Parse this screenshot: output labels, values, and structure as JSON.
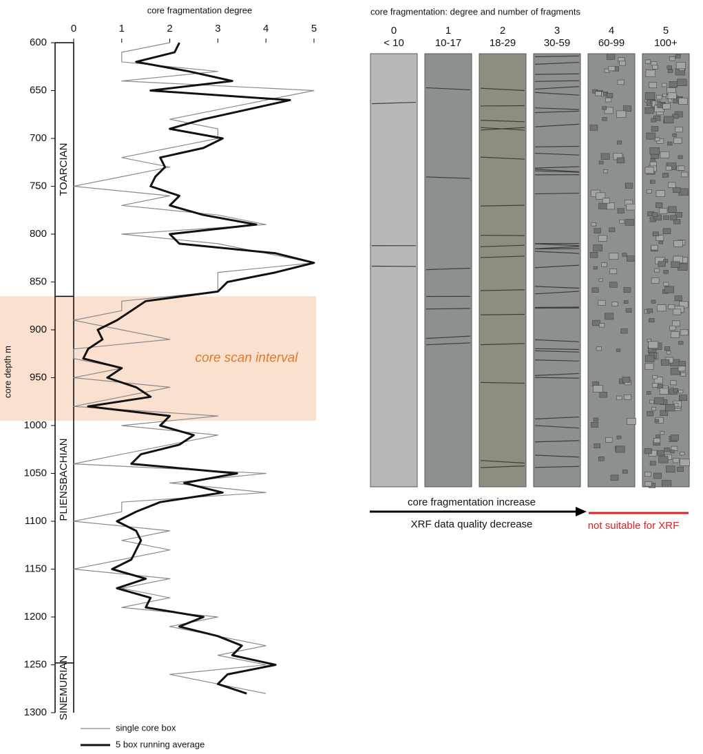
{
  "chart_data": {
    "type": "line",
    "x_label": "core fragmentation degree",
    "y_label": "core depth m",
    "xlim": [
      0,
      5
    ],
    "xticks": [
      0,
      1,
      2,
      3,
      4,
      5
    ],
    "ylim": [
      600,
      1300
    ],
    "yticks": [
      600,
      650,
      700,
      750,
      800,
      850,
      900,
      950,
      1000,
      1050,
      1100,
      1150,
      1200,
      1250,
      1300
    ],
    "y_inverted": true,
    "x_axis_position": "top",
    "depths": [
      600,
      610,
      620,
      630,
      640,
      650,
      660,
      670,
      680,
      690,
      700,
      710,
      720,
      730,
      740,
      750,
      760,
      770,
      780,
      790,
      800,
      810,
      820,
      830,
      840,
      850,
      860,
      870,
      880,
      890,
      900,
      910,
      920,
      930,
      940,
      950,
      960,
      970,
      980,
      990,
      1000,
      1010,
      1020,
      1030,
      1040,
      1050,
      1060,
      1070,
      1080,
      1090,
      1100,
      1110,
      1120,
      1130,
      1140,
      1150,
      1160,
      1170,
      1180,
      1190,
      1200,
      1210,
      1220,
      1230,
      1240,
      1250,
      1260,
      1270,
      1280
    ],
    "series": [
      {
        "name": "single core box",
        "color": "#8a8a8a",
        "width": 1.2,
        "values": [
          2,
          1,
          1,
          3,
          1,
          5,
          4,
          3,
          2,
          3,
          3,
          2,
          1,
          2,
          1,
          0,
          2,
          1,
          3,
          4,
          1,
          3,
          4,
          5,
          3,
          3,
          3,
          1,
          1,
          0,
          1,
          2,
          0,
          0,
          1,
          0,
          2,
          1,
          0,
          3,
          1,
          3,
          2,
          1,
          0,
          4,
          2,
          4,
          1,
          1,
          0,
          2,
          1,
          2,
          1,
          0,
          2,
          1,
          2,
          1,
          3,
          2,
          3,
          4,
          3,
          4,
          2,
          3,
          4
        ]
      },
      {
        "name": "5 box running average",
        "color": "#111111",
        "width": 3,
        "values": [
          2.2,
          2.1,
          1.3,
          2.4,
          3.3,
          1.6,
          4.5,
          3.6,
          2.7,
          2.0,
          3.1,
          2.7,
          1.8,
          1.9,
          1.7,
          1.6,
          2.2,
          2.0,
          2.7,
          3.8,
          2.0,
          2.2,
          4.2,
          5.0,
          4.2,
          3.2,
          3.0,
          1.5,
          1.2,
          0.9,
          0.5,
          0.6,
          0.3,
          0.2,
          1.0,
          0.7,
          1.3,
          1.6,
          0.3,
          2.0,
          1.8,
          2.5,
          2.2,
          1.4,
          1.2,
          3.4,
          2.3,
          3.1,
          1.8,
          1.3,
          0.9,
          1.3,
          1.4,
          1.3,
          1.2,
          0.8,
          1.5,
          0.9,
          1.6,
          1.5,
          2.7,
          2.2,
          3.0,
          3.5,
          3.3,
          4.2,
          3.2,
          3.0,
          3.6
        ]
      }
    ],
    "stages": [
      {
        "name": "TOARCIAN",
        "top": 600,
        "base": 865
      },
      {
        "name": "PLIENSBACHIAN",
        "top": 865,
        "base": 1248
      },
      {
        "name": "SINEMURIAN",
        "top": 1248,
        "base": 1300
      }
    ],
    "highlight": {
      "label": "core scan interval",
      "top": 865,
      "base": 995,
      "color": "#f9e0cf",
      "text_color": "#e07a2c"
    },
    "legend": "bottom-left"
  },
  "core_photos": {
    "title": "core fragmentation: degree and number of fragments",
    "columns": [
      {
        "degree": "0",
        "fragments": "< 10"
      },
      {
        "degree": "1",
        "fragments": "10-17"
      },
      {
        "degree": "2",
        "fragments": "18-29"
      },
      {
        "degree": "3",
        "fragments": "30-59"
      },
      {
        "degree": "4",
        "fragments": "60-99"
      },
      {
        "degree": "5",
        "fragments": "100+"
      }
    ],
    "arrow_top_label": "core fragmentation increase",
    "arrow_bottom_label": "XRF data quality decrease",
    "unsuitable_label": "not suitable for XRF"
  }
}
